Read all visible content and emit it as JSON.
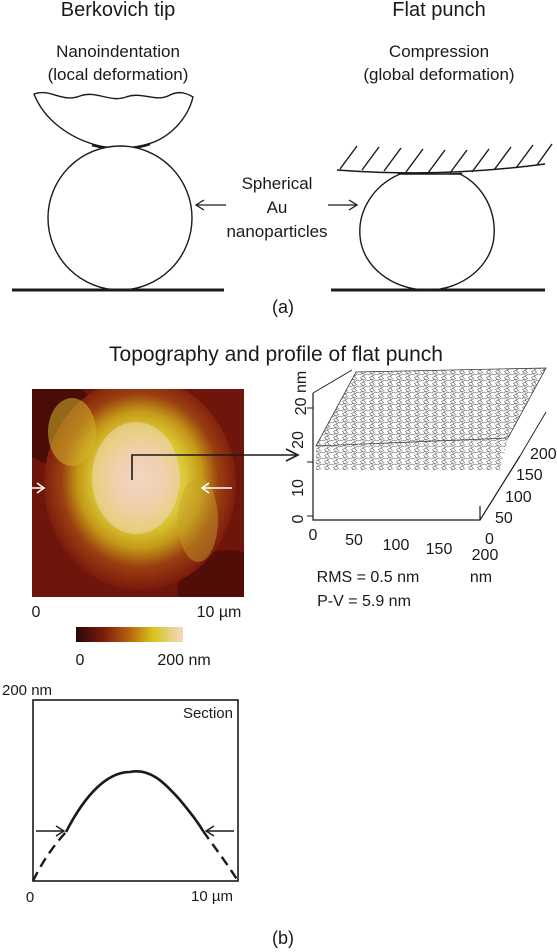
{
  "panel_a": {
    "left_title": "Berkovich tip",
    "right_title": "Flat punch",
    "left_caption_line1": "Nanoindentation",
    "left_caption_line2": "(local deformation)",
    "right_caption_line1": "Compression",
    "right_caption_line2": "(global deformation)",
    "center_label_line1": "Spherical",
    "center_label_line2": "Au",
    "center_label_line3": "nanoparticles",
    "panel_label": "(a)"
  },
  "panel_b": {
    "title": "Topography and profile of flat punch",
    "afm_map": {
      "x_start": "0",
      "x_end": "10 µm",
      "colorbar_min": "0",
      "colorbar_max": "200 nm",
      "colormap": [
        "#2a0707",
        "#7a1a0c",
        "#b8640f",
        "#d6c51c",
        "#f3d7c4"
      ]
    },
    "plot_3d": {
      "z_label": "20 nm",
      "z_ticks": [
        "20",
        "10",
        "0"
      ],
      "x_ticks": [
        "0",
        "50",
        "100",
        "150",
        "200"
      ],
      "y_ticks": [
        "200",
        "150",
        "100",
        "50",
        "0"
      ],
      "x_unit": "nm",
      "rms": "RMS = 0.5 nm",
      "pv": "P-V = 5.9 nm"
    },
    "section": {
      "label": "Section",
      "y_max": "200 nm",
      "x_start": "0",
      "x_end": "10 µm"
    },
    "panel_label": "(b)"
  }
}
